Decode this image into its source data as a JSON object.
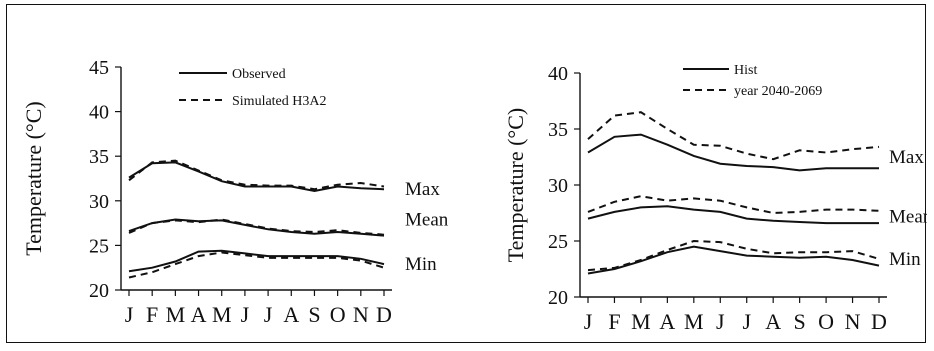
{
  "chart_data": [
    {
      "type": "line",
      "title": "",
      "xlabel": "",
      "ylabel": "Temperature (°C)",
      "ylim": [
        20,
        45
      ],
      "yticks": [
        20,
        25,
        30,
        35,
        40,
        45
      ],
      "categories": [
        "J",
        "F",
        "M",
        "A",
        "M",
        "J",
        "J",
        "A",
        "S",
        "O",
        "N",
        "D"
      ],
      "grid": false,
      "legend_position": "top-center",
      "legend": [
        {
          "label": "Observed",
          "style": "solid"
        },
        {
          "label": "Simulated H3A2",
          "style": "dashed"
        }
      ],
      "group_labels": [
        {
          "text": "Max",
          "y": 31.3
        },
        {
          "text": "Mean",
          "y": 27.9
        },
        {
          "text": "Min",
          "y": 22.9
        }
      ],
      "series": [
        {
          "name": "Observed",
          "group": "Max",
          "style": "solid",
          "values": [
            32.6,
            34.2,
            34.3,
            33.3,
            32.2,
            31.6,
            31.6,
            31.6,
            31.1,
            31.6,
            31.4,
            31.3
          ]
        },
        {
          "name": "Simulated H3A2",
          "group": "Max",
          "style": "dashed",
          "values": [
            32.3,
            34.3,
            34.5,
            33.4,
            32.3,
            31.8,
            31.7,
            31.7,
            31.3,
            31.8,
            32.0,
            31.6
          ]
        },
        {
          "name": "Observed",
          "group": "Mean",
          "style": "solid",
          "values": [
            26.6,
            27.5,
            27.9,
            27.7,
            27.8,
            27.3,
            26.8,
            26.5,
            26.3,
            26.5,
            26.3,
            26.1
          ]
        },
        {
          "name": "Simulated H3A2",
          "group": "Mean",
          "style": "dashed",
          "values": [
            26.4,
            27.5,
            27.8,
            27.6,
            27.9,
            27.4,
            26.9,
            26.6,
            26.5,
            26.7,
            26.4,
            26.2
          ]
        },
        {
          "name": "Observed",
          "group": "Min",
          "style": "solid",
          "values": [
            22.1,
            22.5,
            23.2,
            24.3,
            24.4,
            24.1,
            23.8,
            23.8,
            23.8,
            23.8,
            23.5,
            22.9
          ]
        },
        {
          "name": "Simulated H3A2",
          "group": "Min",
          "style": "dashed",
          "values": [
            21.4,
            22.0,
            22.9,
            23.8,
            24.2,
            23.9,
            23.6,
            23.6,
            23.6,
            23.6,
            23.3,
            22.5
          ]
        }
      ]
    },
    {
      "type": "line",
      "title": "",
      "xlabel": "",
      "ylabel": "Temperature (°C)",
      "ylim": [
        20,
        40
      ],
      "yticks": [
        20,
        25,
        30,
        35,
        40
      ],
      "categories": [
        "J",
        "F",
        "M",
        "A",
        "M",
        "J",
        "J",
        "A",
        "S",
        "O",
        "N",
        "D"
      ],
      "grid": false,
      "legend_position": "top-center",
      "legend": [
        {
          "label": "Hist",
          "style": "solid"
        },
        {
          "label": "year 2040-2069",
          "style": "dashed"
        }
      ],
      "group_labels": [
        {
          "text": "Max",
          "y": 32.5
        },
        {
          "text": "Mean",
          "y": 27.2
        },
        {
          "text": "Min",
          "y": 23.4
        }
      ],
      "series": [
        {
          "name": "Hist",
          "group": "Max",
          "style": "solid",
          "values": [
            32.9,
            34.3,
            34.5,
            33.6,
            32.6,
            31.9,
            31.7,
            31.6,
            31.3,
            31.5,
            31.5,
            31.5
          ]
        },
        {
          "name": "year 2040-2069",
          "group": "Max",
          "style": "dashed",
          "values": [
            34.1,
            36.2,
            36.5,
            35.0,
            33.6,
            33.5,
            32.8,
            32.3,
            33.1,
            32.9,
            33.2,
            33.4
          ]
        },
        {
          "name": "Hist",
          "group": "Mean",
          "style": "solid",
          "values": [
            27.0,
            27.6,
            28.0,
            28.1,
            27.8,
            27.6,
            27.0,
            26.8,
            26.7,
            26.6,
            26.6,
            26.6
          ]
        },
        {
          "name": "year 2040-2069",
          "group": "Mean",
          "style": "dashed",
          "values": [
            27.6,
            28.5,
            29.0,
            28.6,
            28.8,
            28.6,
            28.0,
            27.5,
            27.6,
            27.8,
            27.8,
            27.7
          ]
        },
        {
          "name": "Hist",
          "group": "Min",
          "style": "solid",
          "values": [
            22.1,
            22.5,
            23.2,
            24.0,
            24.5,
            24.1,
            23.7,
            23.6,
            23.5,
            23.6,
            23.3,
            22.8
          ]
        },
        {
          "name": "year 2040-2069",
          "group": "Min",
          "style": "dashed",
          "values": [
            22.4,
            22.6,
            23.3,
            24.2,
            25.0,
            24.9,
            24.3,
            23.9,
            24.0,
            24.0,
            24.1,
            23.4
          ]
        }
      ]
    }
  ]
}
